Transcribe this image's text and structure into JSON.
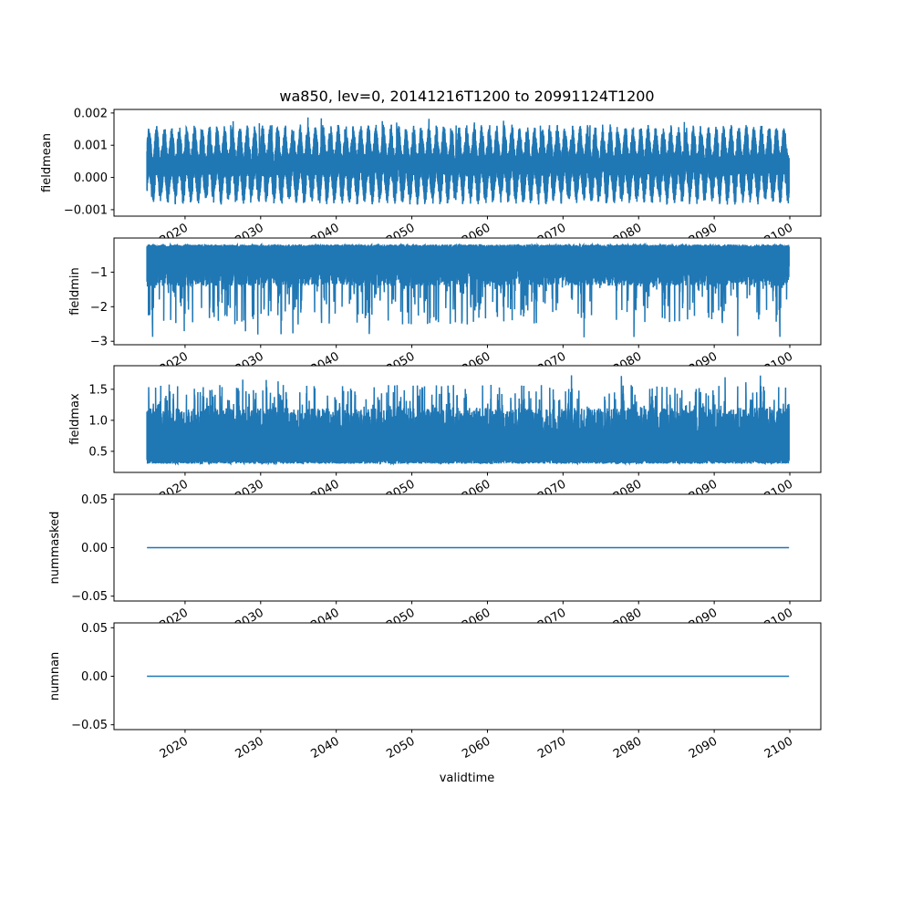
{
  "chart_data": {
    "type": "line",
    "title": "wa850, lev=0, 20141216T1200 to 20991124T1200",
    "xlabel": "validtime",
    "x_range": [
      2014.96,
      2099.9
    ],
    "xlim": [
      2010.6,
      2104.1
    ],
    "x_ticks": [
      2020,
      2030,
      2040,
      2050,
      2060,
      2070,
      2080,
      2090,
      2100
    ],
    "x_tick_labels": [
      "2020",
      "2030",
      "2040",
      "2050",
      "2060",
      "2070",
      "2080",
      "2090",
      "2100"
    ],
    "color": "#1f77b4",
    "grid": false,
    "panels": [
      {
        "ylabel": "fieldmean",
        "ylim": [
          -0.0012,
          0.00211
        ],
        "yticks": [
          -0.001,
          0,
          0.001,
          0.002
        ],
        "ytick_labels": [
          "−0.001",
          "0.000",
          "0.001",
          "0.002"
        ],
        "typical_range": [
          -0.0008,
          0.0014
        ],
        "extreme_range": [
          -0.00115,
          0.0019
        ],
        "center": 0.0004
      },
      {
        "ylabel": "fieldmin",
        "ylim": [
          -3.1,
          -0.013
        ],
        "yticks": [
          -3,
          -2,
          -1
        ],
        "ytick_labels": [
          "−3",
          "−2",
          "−1"
        ],
        "typical_range": [
          -1.4,
          -0.2
        ],
        "extreme_range": [
          -3.0,
          -0.18
        ],
        "center": -0.7
      },
      {
        "ylabel": "fieldmax",
        "ylim": [
          0.16,
          1.88
        ],
        "yticks": [
          0.5,
          1.0,
          1.5
        ],
        "ytick_labels": [
          "0.5",
          "1.0",
          "1.5"
        ],
        "typical_range": [
          0.3,
          1.2
        ],
        "extreme_range": [
          0.22,
          1.82
        ],
        "center": 0.6
      },
      {
        "ylabel": "nummasked",
        "ylim": [
          -0.055,
          0.055
        ],
        "yticks": [
          -0.05,
          0,
          0.05
        ],
        "ytick_labels": [
          "−0.05",
          "0.00",
          "0.05"
        ],
        "constant": 0
      },
      {
        "ylabel": "numnan",
        "ylim": [
          -0.055,
          0.055
        ],
        "yticks": [
          -0.05,
          0,
          0.05
        ],
        "ytick_labels": [
          "−0.05",
          "0.00",
          "0.05"
        ],
        "constant": 0
      }
    ]
  }
}
